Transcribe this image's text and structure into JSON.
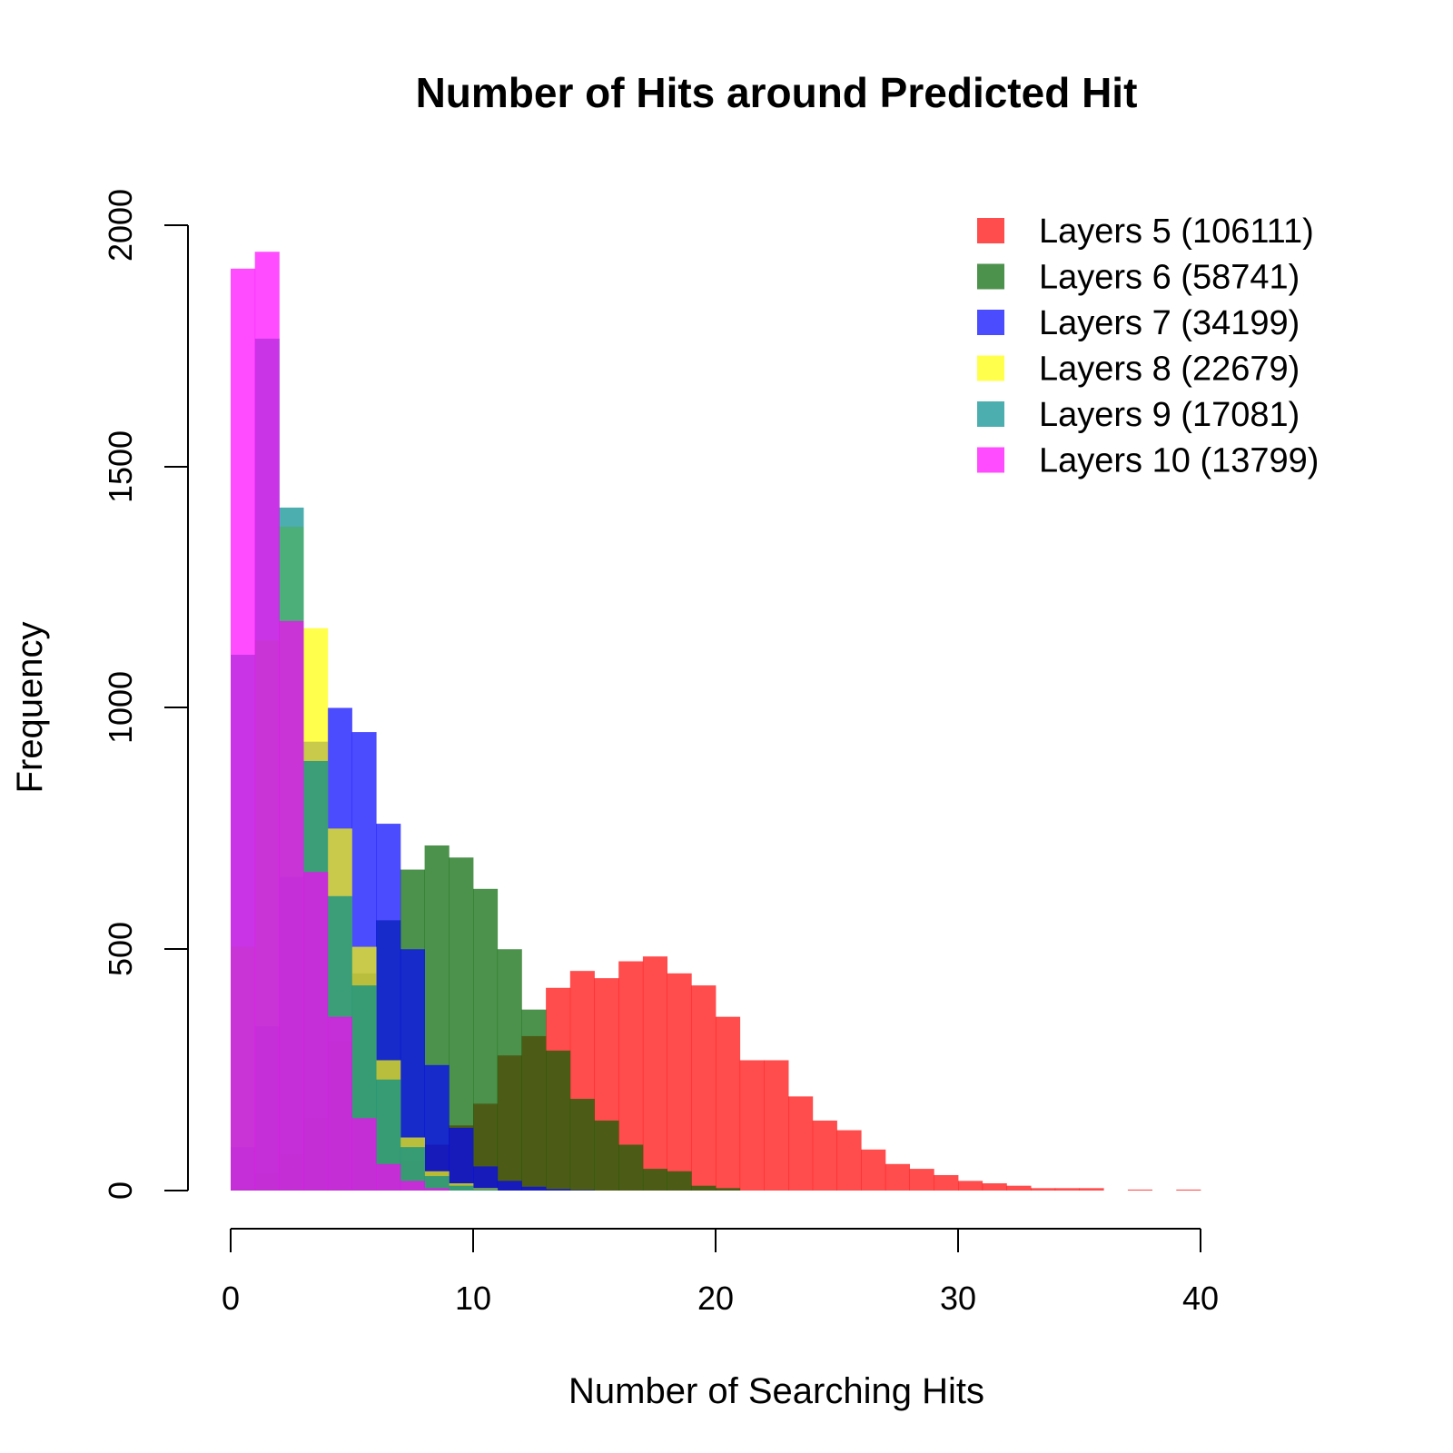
{
  "chart_data": {
    "type": "histogram",
    "title": "Number of Hits around Predicted Hit",
    "xlabel": "Number of Searching Hits",
    "ylabel": "Frequency",
    "xlim": [
      0,
      40
    ],
    "ylim": [
      0,
      2000
    ],
    "bin_width": 1,
    "x_ticks": [
      "0",
      "10",
      "20",
      "30",
      "40"
    ],
    "y_ticks": [
      "0",
      "500",
      "1000",
      "1500",
      "2000"
    ],
    "grid": false,
    "legend_position": "top-right",
    "series": [
      {
        "name": "Layers 5 (106111)",
        "color": "#ff0000",
        "alpha": 0.7,
        "bin_starts": [
          0,
          1,
          2,
          3,
          4,
          5,
          6,
          7,
          8,
          9,
          10,
          11,
          12,
          13,
          14,
          15,
          16,
          17,
          18,
          19,
          20,
          21,
          22,
          23,
          24,
          25,
          26,
          27,
          28,
          29,
          30,
          31,
          32,
          33,
          34,
          35,
          37,
          39
        ],
        "values": [
          2,
          3,
          4,
          8,
          18,
          30,
          55,
          60,
          95,
          135,
          180,
          280,
          320,
          420,
          455,
          440,
          475,
          485,
          450,
          425,
          360,
          270,
          270,
          195,
          145,
          125,
          85,
          55,
          45,
          32,
          20,
          15,
          10,
          5,
          5,
          5,
          2,
          2
        ]
      },
      {
        "name": "Layers 6 (58741)",
        "color": "#006400",
        "alpha": 0.7,
        "bin_starts": [
          0,
          1,
          2,
          3,
          4,
          5,
          6,
          7,
          8,
          9,
          10,
          11,
          12,
          13,
          14,
          15,
          16,
          17,
          18,
          19,
          20
        ],
        "values": [
          5,
          35,
          75,
          150,
          310,
          450,
          560,
          665,
          715,
          690,
          625,
          500,
          375,
          290,
          190,
          145,
          95,
          45,
          40,
          10,
          5
        ]
      },
      {
        "name": "Layers 7 (34199)",
        "color": "#0000ff",
        "alpha": 0.7,
        "bin_starts": [
          0,
          1,
          2,
          3,
          4,
          5,
          6,
          7,
          8,
          9,
          10,
          11,
          12,
          13,
          14
        ],
        "values": [
          90,
          340,
          650,
          930,
          1000,
          950,
          760,
          500,
          260,
          130,
          50,
          20,
          8,
          3,
          1
        ]
      },
      {
        "name": "Layers 8 (22679)",
        "color": "#ffff00",
        "alpha": 0.7,
        "bin_starts": [
          0,
          1,
          2,
          3,
          4,
          5,
          6,
          7,
          8,
          9,
          10
        ],
        "values": [
          505,
          1140,
          1375,
          1165,
          750,
          505,
          270,
          110,
          40,
          15,
          5
        ]
      },
      {
        "name": "Layers 9 (17081)",
        "color": "#008b8b",
        "alpha": 0.7,
        "bin_starts": [
          0,
          1,
          2,
          3,
          4,
          5,
          6,
          7,
          8,
          9,
          10
        ],
        "values": [
          1110,
          1765,
          1415,
          890,
          610,
          425,
          230,
          90,
          30,
          10,
          3
        ]
      },
      {
        "name": "Layers 10 (13799)",
        "color": "#ff00ff",
        "alpha": 0.7,
        "bin_starts": [
          0,
          1,
          2,
          3,
          4,
          5,
          6,
          7,
          8
        ],
        "values": [
          1910,
          1945,
          1180,
          660,
          360,
          150,
          55,
          20,
          5
        ]
      }
    ]
  }
}
